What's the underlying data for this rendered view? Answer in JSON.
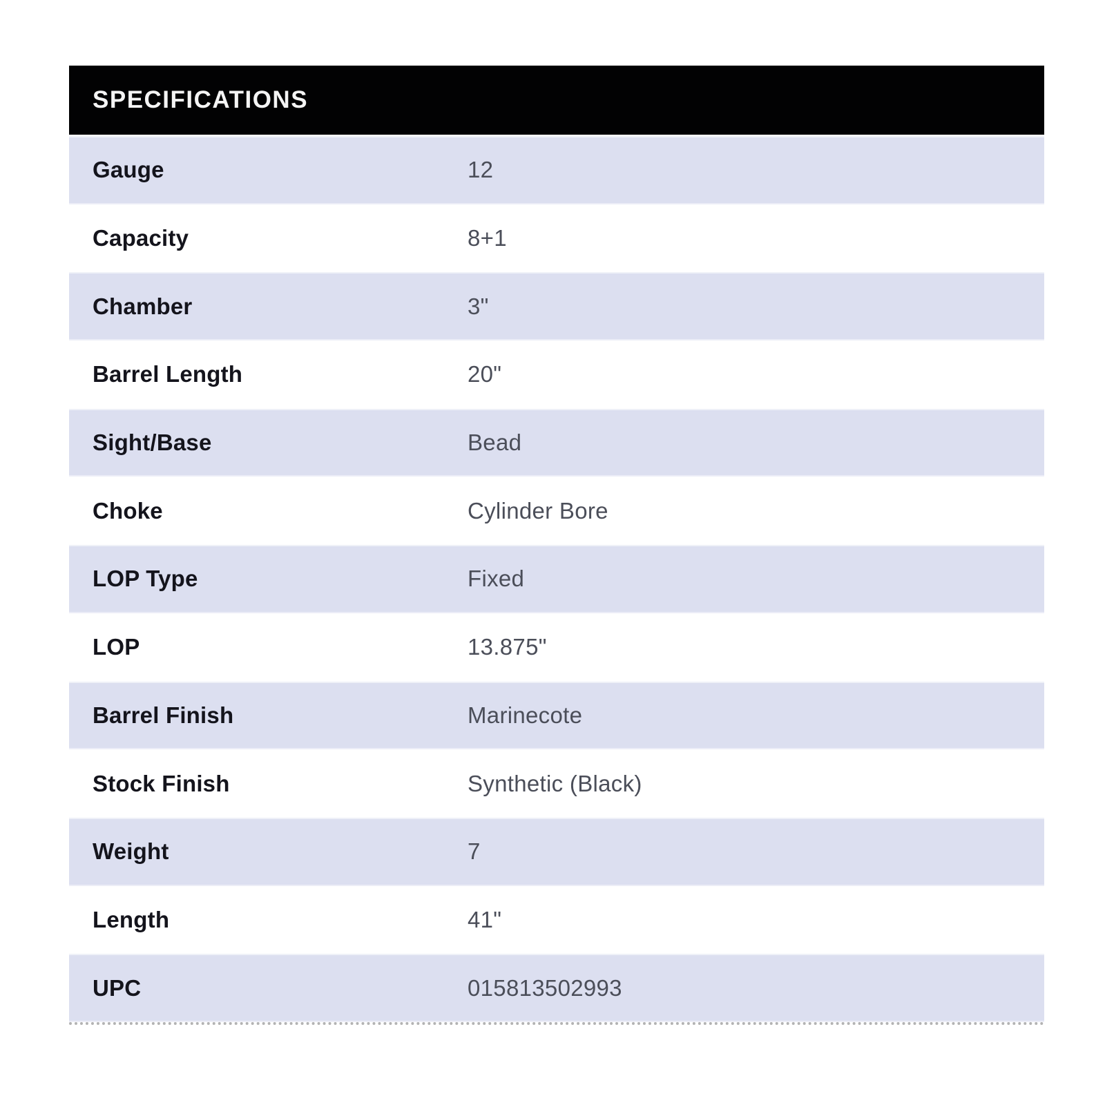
{
  "table": {
    "header": "SPECIFICATIONS",
    "rows": [
      {
        "label": "Gauge",
        "value": "12"
      },
      {
        "label": "Capacity",
        "value": "8+1"
      },
      {
        "label": "Chamber",
        "value": "3\""
      },
      {
        "label": "Barrel Length",
        "value": "20\""
      },
      {
        "label": "Sight/Base",
        "value": "Bead"
      },
      {
        "label": "Choke",
        "value": "Cylinder Bore"
      },
      {
        "label": "LOP Type",
        "value": "Fixed"
      },
      {
        "label": "LOP",
        "value": "13.875\""
      },
      {
        "label": "Barrel Finish",
        "value": "Marinecote"
      },
      {
        "label": "Stock Finish",
        "value": "Synthetic (Black)"
      },
      {
        "label": "Weight",
        "value": "7"
      },
      {
        "label": "Length",
        "value": "41\""
      },
      {
        "label": "UPC",
        "value": "015813502993"
      }
    ],
    "colors": {
      "header_bg": "#020203",
      "header_text": "#f4f4f4",
      "row_alt_bg": "#dcdff0",
      "row_bg": "#ffffff",
      "label_text": "#14141c",
      "value_text": "#4b4e59",
      "dotted_rule": "#b3b3b3"
    }
  }
}
